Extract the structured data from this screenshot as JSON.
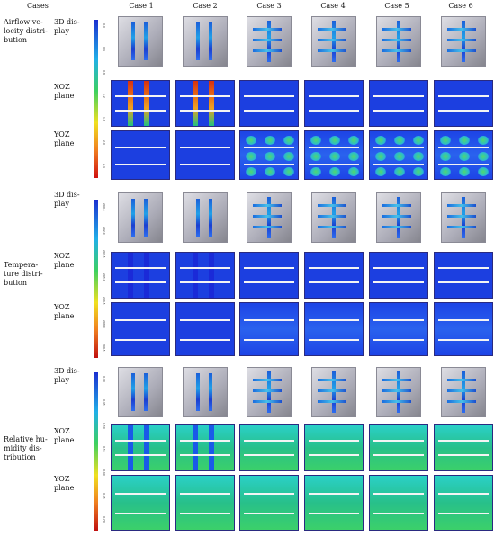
{
  "header": {
    "cases_label": "Cases",
    "columns": [
      "Case 1",
      "Case 2",
      "Case 3",
      "Case 4",
      "Case 5",
      "Case 6"
    ]
  },
  "groups": [
    {
      "label_lines": [
        "Airflow ve-",
        "locity distri-",
        "bution"
      ],
      "rows": [
        {
          "label_lines": [
            "3D dis-",
            "play"
          ]
        },
        {
          "label_lines": [
            "XOZ",
            "plane"
          ]
        },
        {
          "label_lines": [
            "YOZ",
            "plane"
          ]
        }
      ],
      "legend_ticks": [
        "0.0",
        "0.4",
        "0.8",
        "1.2",
        "1.6",
        "2.0",
        "2.4"
      ]
    },
    {
      "label_lines": [
        "Tempera-",
        "ture distri-",
        "bution"
      ],
      "rows": [
        {
          "label_lines": [
            "3D dis-",
            "play"
          ]
        },
        {
          "label_lines": [
            "XOZ",
            "plane"
          ]
        },
        {
          "label_lines": [
            "YOZ",
            "plane"
          ]
        }
      ],
      "legend_ticks": [
        "290.5",
        "292.0",
        "293.5",
        "295.0",
        "296.5",
        "298.0",
        "299.5"
      ]
    },
    {
      "label_lines": [
        "Relative hu-",
        "midity dis-",
        "tribution"
      ],
      "rows": [
        {
          "label_lines": [
            "3D dis-",
            "play"
          ]
        },
        {
          "label_lines": [
            "XOZ",
            "plane"
          ]
        },
        {
          "label_lines": [
            "YOZ",
            "plane"
          ]
        }
      ],
      "legend_ticks": [
        "0.40",
        "0.45",
        "0.50",
        "0.55",
        "0.60",
        "0.65",
        "0.70"
      ]
    }
  ],
  "colors": {
    "low": "#1b2fd0",
    "mid": "#3cd060",
    "high": "#d01010"
  }
}
